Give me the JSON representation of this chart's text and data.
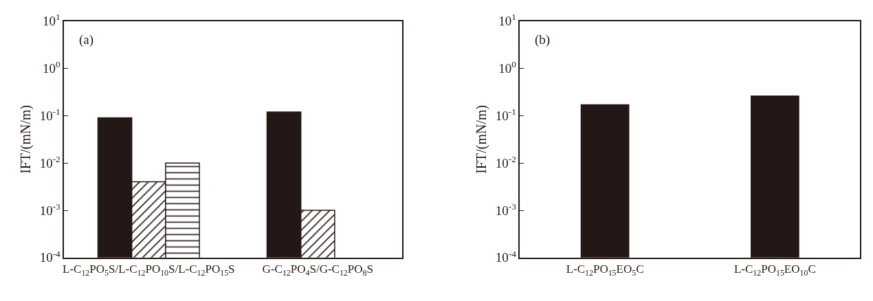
{
  "chart_data": [
    {
      "type": "bar",
      "ylabel": "IFT/(mN/m)",
      "annotations": [
        "(a)"
      ],
      "log": true,
      "categories": [
        "L-C$_{12}$PO$_{5}$S/L-C$_{12}$PO$_{10}$S/L-C$_{12}$PO$_{15}$S",
        "G-C$_{12}$PO$_{4}$S/G-C$_{12}$PO$_{8}$S"
      ],
      "ylim": [
        0.0001,
        10
      ],
      "yticks": [
        {
          "value": 0.0001,
          "label": "10$^{-4}$"
        },
        {
          "value": 0.001,
          "label": "10$^{-3}$"
        },
        {
          "value": 0.01,
          "label": "10$^{-2}$"
        },
        {
          "value": 0.1,
          "label": "10$^{-1}$"
        },
        {
          "value": 1,
          "label": "10$^{0}$"
        },
        {
          "value": 10,
          "label": "10$^{1}$"
        }
      ],
      "series": [
        {
          "color": "#231815",
          "values": [
            0.09,
            0.12
          ]
        },
        {
          "color": "#231815",
          "values": [
            0.004,
            0.001
          ]
        },
        {
          "color": "#231815",
          "values": [
            0.01,
            null
          ]
        }
      ]
    },
    {
      "type": "bar",
      "ylabel": "IFT/(mN/m)",
      "annotations": [
        "(b)"
      ],
      "log": true,
      "categories": [
        "L-C$_{12}$PO$_{15}$EO$_{5}$C",
        "L-C$_{12}$PO$_{15}$EO$_{10}$C"
      ],
      "ylim": [
        0.0001,
        10
      ],
      "yticks": [
        {
          "value": 0.0001,
          "label": "10$^{-4}$"
        },
        {
          "value": 0.001,
          "label": "10$^{-3}$"
        },
        {
          "value": 0.01,
          "label": "10$^{-2}$"
        },
        {
          "value": 0.1,
          "label": "10$^{-1}$"
        },
        {
          "value": 1,
          "label": "10$^{0}$"
        },
        {
          "value": 10,
          "label": "10$^{1}$"
        }
      ],
      "series": [
        {
          "color": "#231815",
          "values": [
            0.17,
            0.26
          ]
        }
      ]
    }
  ]
}
